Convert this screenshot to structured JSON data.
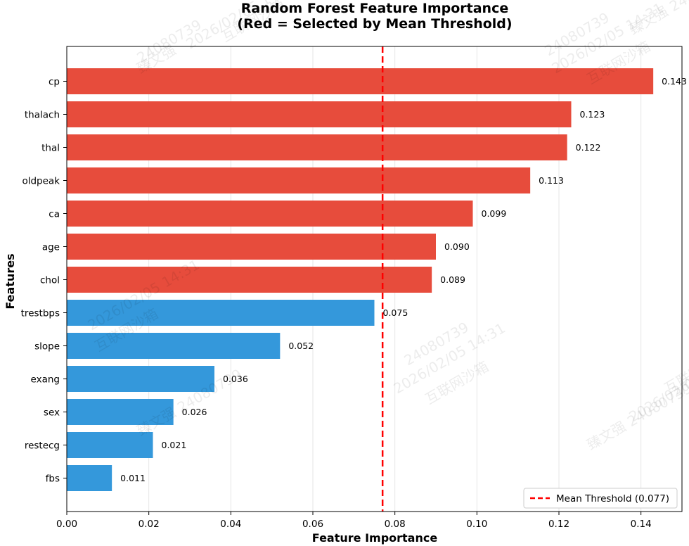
{
  "chart_data": {
    "type": "bar",
    "orientation": "horizontal",
    "title_lines": [
      "Random Forest Feature Importance",
      "(Red = Selected by Mean Threshold)"
    ],
    "xlabel": "Feature Importance",
    "ylabel": "Features",
    "xlim": [
      0,
      0.15
    ],
    "xticks": [
      "0.00",
      "0.02",
      "0.04",
      "0.06",
      "0.08",
      "0.10",
      "0.12",
      "0.14"
    ],
    "grid": "vertical",
    "categories": [
      "cp",
      "thalach",
      "thal",
      "oldpeak",
      "ca",
      "age",
      "chol",
      "trestbps",
      "slope",
      "exang",
      "sex",
      "restecg",
      "fbs"
    ],
    "values": [
      0.143,
      0.123,
      0.122,
      0.113,
      0.099,
      0.09,
      0.089,
      0.075,
      0.052,
      0.036,
      0.026,
      0.021,
      0.011
    ],
    "value_labels": [
      "0.143",
      "0.123",
      "0.122",
      "0.113",
      "0.099",
      "0.090",
      "0.089",
      "0.075",
      "0.052",
      "0.036",
      "0.026",
      "0.021",
      "0.011"
    ],
    "threshold": 0.077,
    "legend": {
      "label": "Mean Threshold (0.077)",
      "placement": "bottom-right"
    },
    "colors": {
      "selected": "#e74c3c",
      "not_selected": "#3498db",
      "threshold": "#ff0000"
    }
  },
  "watermarks": [
    "24080739",
    "2026/02/05 14:31",
    "互联网沙箱",
    "臻文强",
    "24080739",
    "2026/02/05 14:31",
    "互联网沙箱",
    "臻文强 24080739",
    "24080739",
    "2026/02/05 14:31",
    "互联网沙箱",
    "臻文强 24080739",
    "2026/02/05 14:31",
    "互联网沙箱",
    "臻文强 24080739",
    "2026/02/05 14:31",
    "互联网沙箱"
  ]
}
